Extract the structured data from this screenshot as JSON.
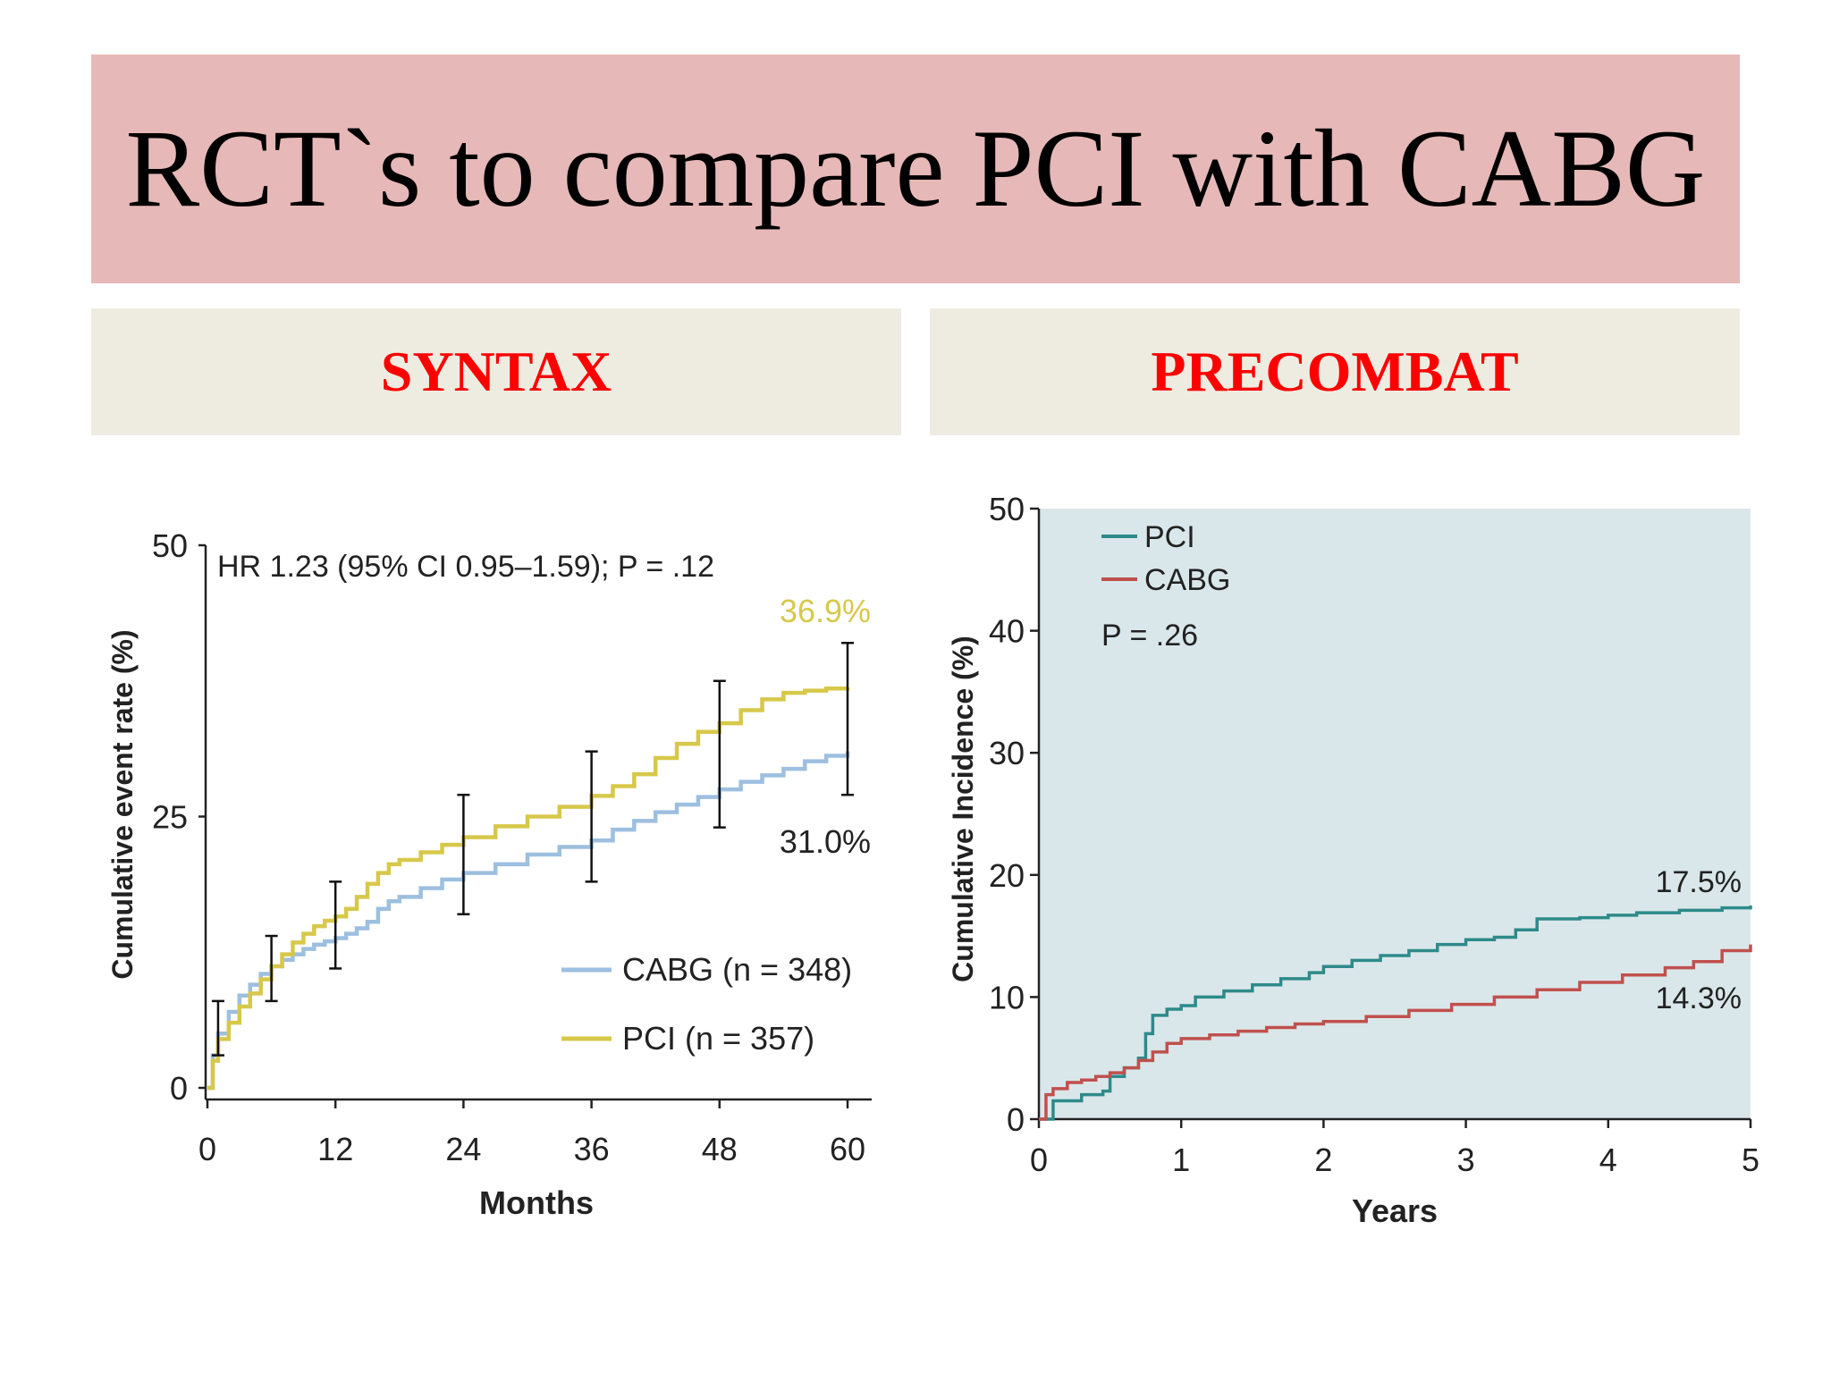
{
  "slide": {
    "title": "RCT`s to compare PCI with CABG",
    "left_study": "SYNTAX",
    "right_study": "PRECOMBAT"
  },
  "chart_data": [
    {
      "type": "line",
      "study": "SYNTAX",
      "title": "",
      "annotation": "HR 1.23 (95% CI 0.95–1.59); P = .12",
      "xlabel": "Months",
      "ylabel": "Cumulative event rate (%)",
      "xlim": [
        0,
        60
      ],
      "ylim": [
        0,
        50
      ],
      "x_ticks": [
        0,
        12,
        24,
        36,
        48,
        60
      ],
      "y_ticks": [
        0,
        25,
        50
      ],
      "legend_position": "bottom-right",
      "series": [
        {
          "name": "CABG",
          "legend_label": "CABG (n = 348)",
          "color": "#9dbfe0",
          "end_label": "31.0%",
          "x": [
            0,
            0.5,
            1,
            2,
            3,
            4,
            5,
            6,
            7,
            8,
            9,
            10,
            11,
            12,
            13,
            14,
            15,
            16,
            17,
            18,
            20,
            22,
            24,
            27,
            30,
            33,
            36,
            38,
            40,
            42,
            44,
            46,
            48,
            50,
            52,
            54,
            56,
            58,
            60
          ],
          "y": [
            0,
            3,
            5,
            7,
            8.5,
            9.5,
            10.5,
            11.2,
            11.8,
            12.3,
            12.8,
            13.2,
            13.5,
            13.8,
            14.2,
            14.7,
            15.3,
            16.5,
            17.2,
            17.6,
            18.4,
            19.2,
            19.8,
            20.6,
            21.5,
            22.2,
            22.8,
            23.8,
            24.6,
            25.4,
            26.1,
            26.8,
            27.5,
            28.2,
            28.8,
            29.4,
            30.1,
            30.6,
            31.0
          ]
        },
        {
          "name": "PCI",
          "legend_label": "PCI (n = 357)",
          "color": "#d7c84a",
          "end_label": "36.9%",
          "x": [
            0,
            0.5,
            1,
            2,
            3,
            4,
            5,
            6,
            7,
            8,
            9,
            10,
            11,
            12,
            13,
            14,
            15,
            16,
            17,
            18,
            20,
            22,
            24,
            27,
            30,
            33,
            36,
            38,
            40,
            42,
            44,
            46,
            48,
            50,
            52,
            54,
            56,
            58,
            60
          ],
          "y": [
            0,
            2.5,
            4.5,
            6,
            7.5,
            8.7,
            10,
            11.2,
            12.3,
            13.4,
            14.2,
            14.9,
            15.4,
            15.8,
            16.5,
            17.6,
            18.8,
            19.8,
            20.6,
            21,
            21.7,
            22.4,
            23.1,
            24.1,
            25,
            25.9,
            26.9,
            27.8,
            28.9,
            30.4,
            31.7,
            32.8,
            33.6,
            34.8,
            35.8,
            36.4,
            36.6,
            36.8,
            36.9
          ]
        }
      ],
      "error_bars": [
        {
          "x": 1,
          "low": 3,
          "high": 8
        },
        {
          "x": 6,
          "low": 8,
          "high": 14
        },
        {
          "x": 12,
          "low": 11,
          "high": 19
        },
        {
          "x": 24,
          "low": 16,
          "high": 27
        },
        {
          "x": 36,
          "low": 19,
          "high": 31
        },
        {
          "x": 48,
          "low": 24,
          "high": 37.5
        },
        {
          "x": 60,
          "low": 27,
          "high": 41
        }
      ]
    },
    {
      "type": "line",
      "study": "PRECOMBAT",
      "title": "",
      "annotation": "P = .26",
      "xlabel": "Years",
      "ylabel": "Cumulative Incidence (%)",
      "xlim": [
        0,
        5
      ],
      "ylim": [
        0,
        50
      ],
      "x_ticks": [
        0,
        1,
        2,
        3,
        4,
        5
      ],
      "y_ticks": [
        0,
        10,
        20,
        30,
        40,
        50
      ],
      "legend_position": "top-left",
      "series": [
        {
          "name": "PCI",
          "legend_label": "PCI",
          "color": "#2e8a8a",
          "end_label": "17.5%",
          "x": [
            0,
            0.1,
            0.3,
            0.45,
            0.5,
            0.6,
            0.7,
            0.75,
            0.8,
            0.9,
            1.0,
            1.1,
            1.3,
            1.5,
            1.7,
            1.9,
            2.0,
            2.2,
            2.4,
            2.6,
            2.8,
            3.0,
            3.2,
            3.35,
            3.5,
            3.8,
            4.0,
            4.2,
            4.5,
            4.8,
            5.0
          ],
          "y": [
            0,
            1.5,
            2,
            2.3,
            3.5,
            4.2,
            5,
            7,
            8.5,
            9,
            9.3,
            10,
            10.5,
            11,
            11.5,
            12,
            12.5,
            13,
            13.4,
            13.8,
            14.3,
            14.7,
            14.9,
            15.5,
            16.4,
            16.5,
            16.7,
            16.9,
            17.1,
            17.3,
            17.5
          ]
        },
        {
          "name": "CABG",
          "legend_label": "CABG",
          "color": "#c0504d",
          "end_label": "14.3%",
          "x": [
            0,
            0.05,
            0.1,
            0.2,
            0.3,
            0.4,
            0.5,
            0.6,
            0.7,
            0.8,
            0.9,
            1.0,
            1.2,
            1.4,
            1.6,
            1.8,
            2.0,
            2.3,
            2.6,
            2.9,
            3.2,
            3.5,
            3.8,
            4.1,
            4.4,
            4.6,
            4.8,
            5.0
          ],
          "y": [
            0,
            2,
            2.5,
            3,
            3.2,
            3.5,
            3.8,
            4.2,
            4.8,
            5.5,
            6.2,
            6.6,
            6.9,
            7.2,
            7.5,
            7.8,
            8.0,
            8.4,
            8.9,
            9.4,
            10.0,
            10.6,
            11.2,
            11.8,
            12.4,
            12.9,
            13.8,
            14.3
          ]
        }
      ]
    }
  ]
}
